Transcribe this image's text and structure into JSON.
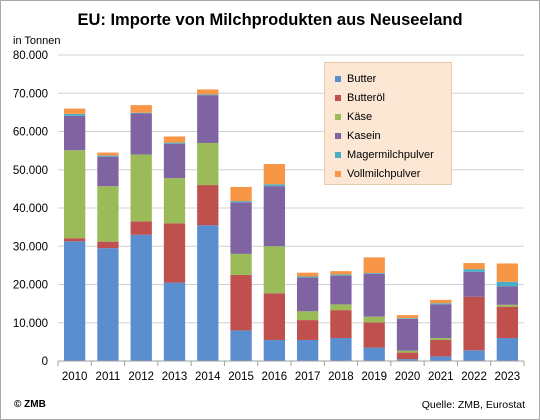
{
  "title": "EU: Importe von Milchprodukten aus Neuseeland",
  "unit_label": "in Tonnen",
  "copyright": "© ZMB",
  "source": "Quelle: ZMB, Eurostat",
  "chart_data": {
    "type": "bar",
    "stacked": true,
    "categories": [
      "2010",
      "2011",
      "2012",
      "2013",
      "2014",
      "2015",
      "2016",
      "2017",
      "2018",
      "2019",
      "2020",
      "2021",
      "2022",
      "2023"
    ],
    "ylim": [
      0,
      80000
    ],
    "yticks": [
      0,
      10000,
      20000,
      30000,
      40000,
      50000,
      60000,
      70000,
      80000
    ],
    "ytick_labels": [
      "0",
      "10.000",
      "20.000",
      "30.000",
      "40.000",
      "50.000",
      "60.000",
      "70.000",
      "80.000"
    ],
    "grid": true,
    "legend_position": "top-right",
    "series": [
      {
        "name": "Butter",
        "color": "#5b8ecf",
        "values": [
          31300,
          29500,
          33000,
          20500,
          35500,
          8000,
          5500,
          5500,
          6000,
          3500,
          500,
          1200,
          2800,
          6000
        ]
      },
      {
        "name": "Butteröl",
        "color": "#c0504d",
        "values": [
          800,
          1700,
          3500,
          15500,
          10500,
          14500,
          12200,
          5200,
          7300,
          6600,
          1700,
          4300,
          14000,
          8200
        ]
      },
      {
        "name": "Käse",
        "color": "#9bbb59",
        "values": [
          23000,
          14500,
          17500,
          11800,
          11000,
          5500,
          12300,
          2300,
          1500,
          1500,
          500,
          500,
          0,
          500
        ]
      },
      {
        "name": "Kasein",
        "color": "#8064a2",
        "values": [
          9000,
          7700,
          10700,
          9000,
          12500,
          13500,
          15700,
          8800,
          7500,
          11200,
          8300,
          8800,
          6500,
          4800
        ]
      },
      {
        "name": "Magermilchpulver",
        "color": "#4bacc6",
        "values": [
          500,
          300,
          200,
          300,
          200,
          300,
          500,
          300,
          300,
          200,
          200,
          300,
          700,
          1200
        ]
      },
      {
        "name": "Vollmilchpulver",
        "color": "#f79646",
        "values": [
          1400,
          800,
          2000,
          1600,
          1300,
          3700,
          5300,
          1000,
          900,
          4100,
          800,
          900,
          1600,
          4800
        ]
      }
    ]
  }
}
